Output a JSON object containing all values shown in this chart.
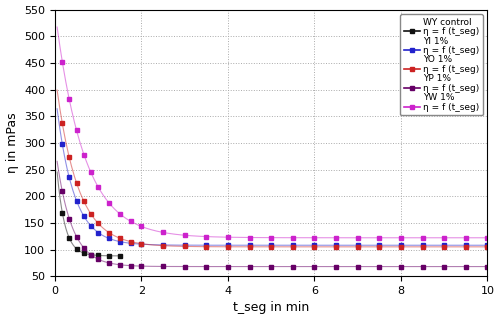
{
  "xlabel": "t_seg in min",
  "ylabel": "η in mPas",
  "xlim": [
    0,
    10
  ],
  "ylim": [
    50,
    550
  ],
  "yticks": [
    50,
    100,
    150,
    200,
    250,
    300,
    350,
    400,
    450,
    500,
    550
  ],
  "xticks": [
    0,
    2,
    4,
    6,
    8,
    10
  ],
  "grid_color": "#aaaaaa",
  "bg_color": "#ffffff",
  "series": [
    {
      "label_header": "WY control",
      "label_fit": "η = f (t_seg)",
      "color": "#111111",
      "t0_val": 295,
      "t_inf": 88,
      "decay": 5.5,
      "t_max_data": 1.5
    },
    {
      "label_header": "YI 1%",
      "label_fit": "η = f (t_seg)",
      "color": "#2222cc",
      "t0_val": 398,
      "t_inf": 108,
      "decay": 2.5,
      "t_max_data": 10.0
    },
    {
      "label_header": "YO 1%",
      "label_fit": "η = f (t_seg)",
      "color": "#cc2222",
      "t0_val": 430,
      "t_inf": 105,
      "decay": 2.0,
      "t_max_data": 10.0
    },
    {
      "label_header": "YP 1%",
      "label_fit": "η = f (t_seg)",
      "color": "#660066",
      "t0_val": 295,
      "t_inf": 68,
      "decay": 2.8,
      "t_max_data": 10.0
    },
    {
      "label_header": "YW 1%",
      "label_fit": "η = f (t_seg)",
      "color": "#cc22cc",
      "t0_val": 548,
      "t_inf": 122,
      "decay": 1.5,
      "t_max_data": 10.0
    }
  ],
  "data_marker_times": [
    0.17,
    0.33,
    0.5,
    0.67,
    0.83,
    1.0,
    1.25,
    1.5,
    1.75,
    2.0,
    2.5,
    3.0,
    3.5,
    4.0,
    4.5,
    5.0,
    5.5,
    6.0,
    6.5,
    7.0,
    7.5,
    8.0,
    8.5,
    9.0,
    9.5,
    10.0
  ],
  "wy_marker_times": [
    0.17,
    0.33,
    0.5,
    0.67,
    0.83,
    1.0,
    1.25,
    1.5
  ]
}
